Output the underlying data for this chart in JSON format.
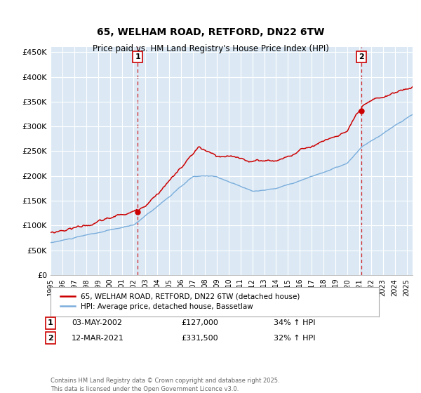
{
  "title": "65, WELHAM ROAD, RETFORD, DN22 6TW",
  "subtitle": "Price paid vs. HM Land Registry's House Price Index (HPI)",
  "ylabel_ticks": [
    "£0",
    "£50K",
    "£100K",
    "£150K",
    "£200K",
    "£250K",
    "£300K",
    "£350K",
    "£400K",
    "£450K"
  ],
  "ytick_values": [
    0,
    50000,
    100000,
    150000,
    200000,
    250000,
    300000,
    350000,
    400000,
    450000
  ],
  "ylim": [
    0,
    460000
  ],
  "xlim_start": 1995.0,
  "xlim_end": 2025.5,
  "xticks": [
    1995,
    1996,
    1997,
    1998,
    1999,
    2000,
    2001,
    2002,
    2003,
    2004,
    2005,
    2006,
    2007,
    2008,
    2009,
    2010,
    2011,
    2012,
    2013,
    2014,
    2015,
    2016,
    2017,
    2018,
    2019,
    2020,
    2021,
    2022,
    2023,
    2024,
    2025
  ],
  "line1_color": "#cc0000",
  "line2_color": "#7aaddb",
  "line1_label": "65, WELHAM ROAD, RETFORD, DN22 6TW (detached house)",
  "line2_label": "HPI: Average price, detached house, Bassetlaw",
  "purchase1_x": 2002.35,
  "purchase1_y": 127000,
  "purchase1_label": "1",
  "purchase2_x": 2021.19,
  "purchase2_y": 331500,
  "purchase2_label": "2",
  "annotation1_date": "03-MAY-2002",
  "annotation1_price": "£127,000",
  "annotation1_hpi": "34% ↑ HPI",
  "annotation2_date": "12-MAR-2021",
  "annotation2_price": "£331,500",
  "annotation2_hpi": "32% ↑ HPI",
  "footer": "Contains HM Land Registry data © Crown copyright and database right 2025.\nThis data is licensed under the Open Government Licence v3.0.",
  "background_color": "#ffffff",
  "plot_bg_color": "#dce9f5",
  "grid_color": "#ffffff"
}
